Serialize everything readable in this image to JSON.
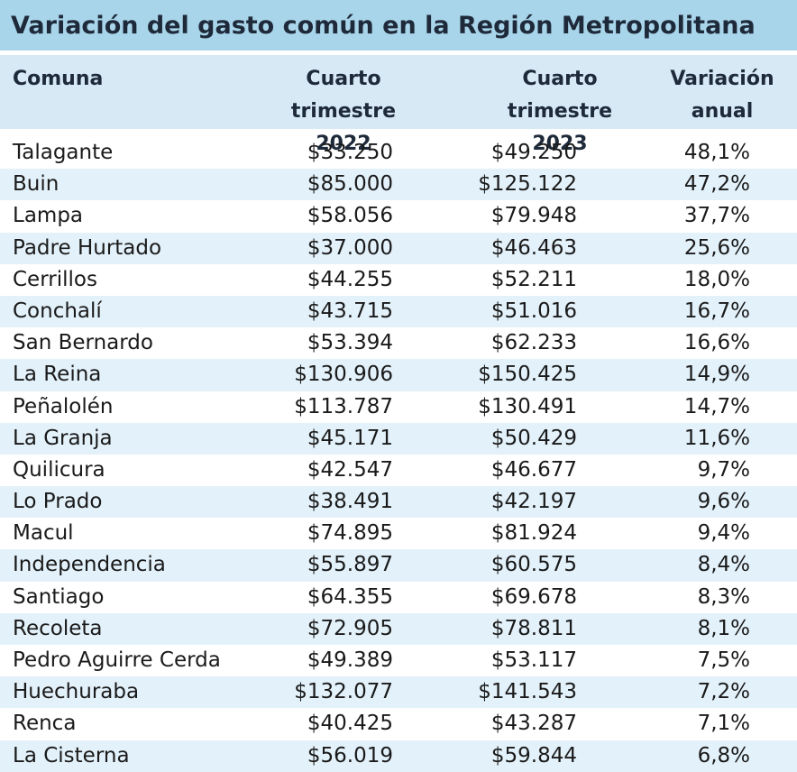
{
  "title": "Variación del gasto común en la Región Metropolitana",
  "columns": {
    "comuna": "Comuna",
    "q4_2022": "Cuarto trimestre 2022",
    "q4_2023": "Cuarto trimestre 2023",
    "variacion": "Variación anual"
  },
  "rows": [
    {
      "comuna": "Talagante",
      "q4_2022": "$33.250",
      "q4_2023": "$49.250",
      "variacion": "48,1%"
    },
    {
      "comuna": "Buin",
      "q4_2022": "$85.000",
      "q4_2023": "$125.122",
      "variacion": "47,2%"
    },
    {
      "comuna": "Lampa",
      "q4_2022": "$58.056",
      "q4_2023": "$79.948",
      "variacion": "37,7%"
    },
    {
      "comuna": "Padre Hurtado",
      "q4_2022": "$37.000",
      "q4_2023": "$46.463",
      "variacion": "25,6%"
    },
    {
      "comuna": "Cerrillos",
      "q4_2022": "$44.255",
      "q4_2023": "$52.211",
      "variacion": "18,0%"
    },
    {
      "comuna": "Conchalí",
      "q4_2022": "$43.715",
      "q4_2023": "$51.016",
      "variacion": "16,7%"
    },
    {
      "comuna": "San Bernardo",
      "q4_2022": "$53.394",
      "q4_2023": "$62.233",
      "variacion": "16,6%"
    },
    {
      "comuna": "La Reina",
      "q4_2022": "$130.906",
      "q4_2023": "$150.425",
      "variacion": "14,9%"
    },
    {
      "comuna": "Peñalolén",
      "q4_2022": "$113.787",
      "q4_2023": "$130.491",
      "variacion": "14,7%"
    },
    {
      "comuna": "La Granja",
      "q4_2022": "$45.171",
      "q4_2023": "$50.429",
      "variacion": "11,6%"
    },
    {
      "comuna": "Quilicura",
      "q4_2022": "$42.547",
      "q4_2023": "$46.677",
      "variacion": "9,7%"
    },
    {
      "comuna": "Lo Prado",
      "q4_2022": "$38.491",
      "q4_2023": "$42.197",
      "variacion": "9,6%"
    },
    {
      "comuna": "Macul",
      "q4_2022": "$74.895",
      "q4_2023": "$81.924",
      "variacion": "9,4%"
    },
    {
      "comuna": "Independencia",
      "q4_2022": "$55.897",
      "q4_2023": "$60.575",
      "variacion": "8,4%"
    },
    {
      "comuna": "Santiago",
      "q4_2022": "$64.355",
      "q4_2023": "$69.678",
      "variacion": "8,3%"
    },
    {
      "comuna": "Recoleta",
      "q4_2022": "$72.905",
      "q4_2023": "$78.811",
      "variacion": "8,1%"
    },
    {
      "comuna": "Pedro Aguirre Cerda",
      "q4_2022": "$49.389",
      "q4_2023": "$53.117",
      "variacion": "7,5%"
    },
    {
      "comuna": "Huechuraba",
      "q4_2022": "$132.077",
      "q4_2023": "$141.543",
      "variacion": "7,2%"
    },
    {
      "comuna": "Renca",
      "q4_2022": "$40.425",
      "q4_2023": "$43.287",
      "variacion": "7,1%"
    },
    {
      "comuna": "La Cisterna",
      "q4_2022": "$56.019",
      "q4_2023": "$59.844",
      "variacion": "6,8%"
    }
  ]
}
